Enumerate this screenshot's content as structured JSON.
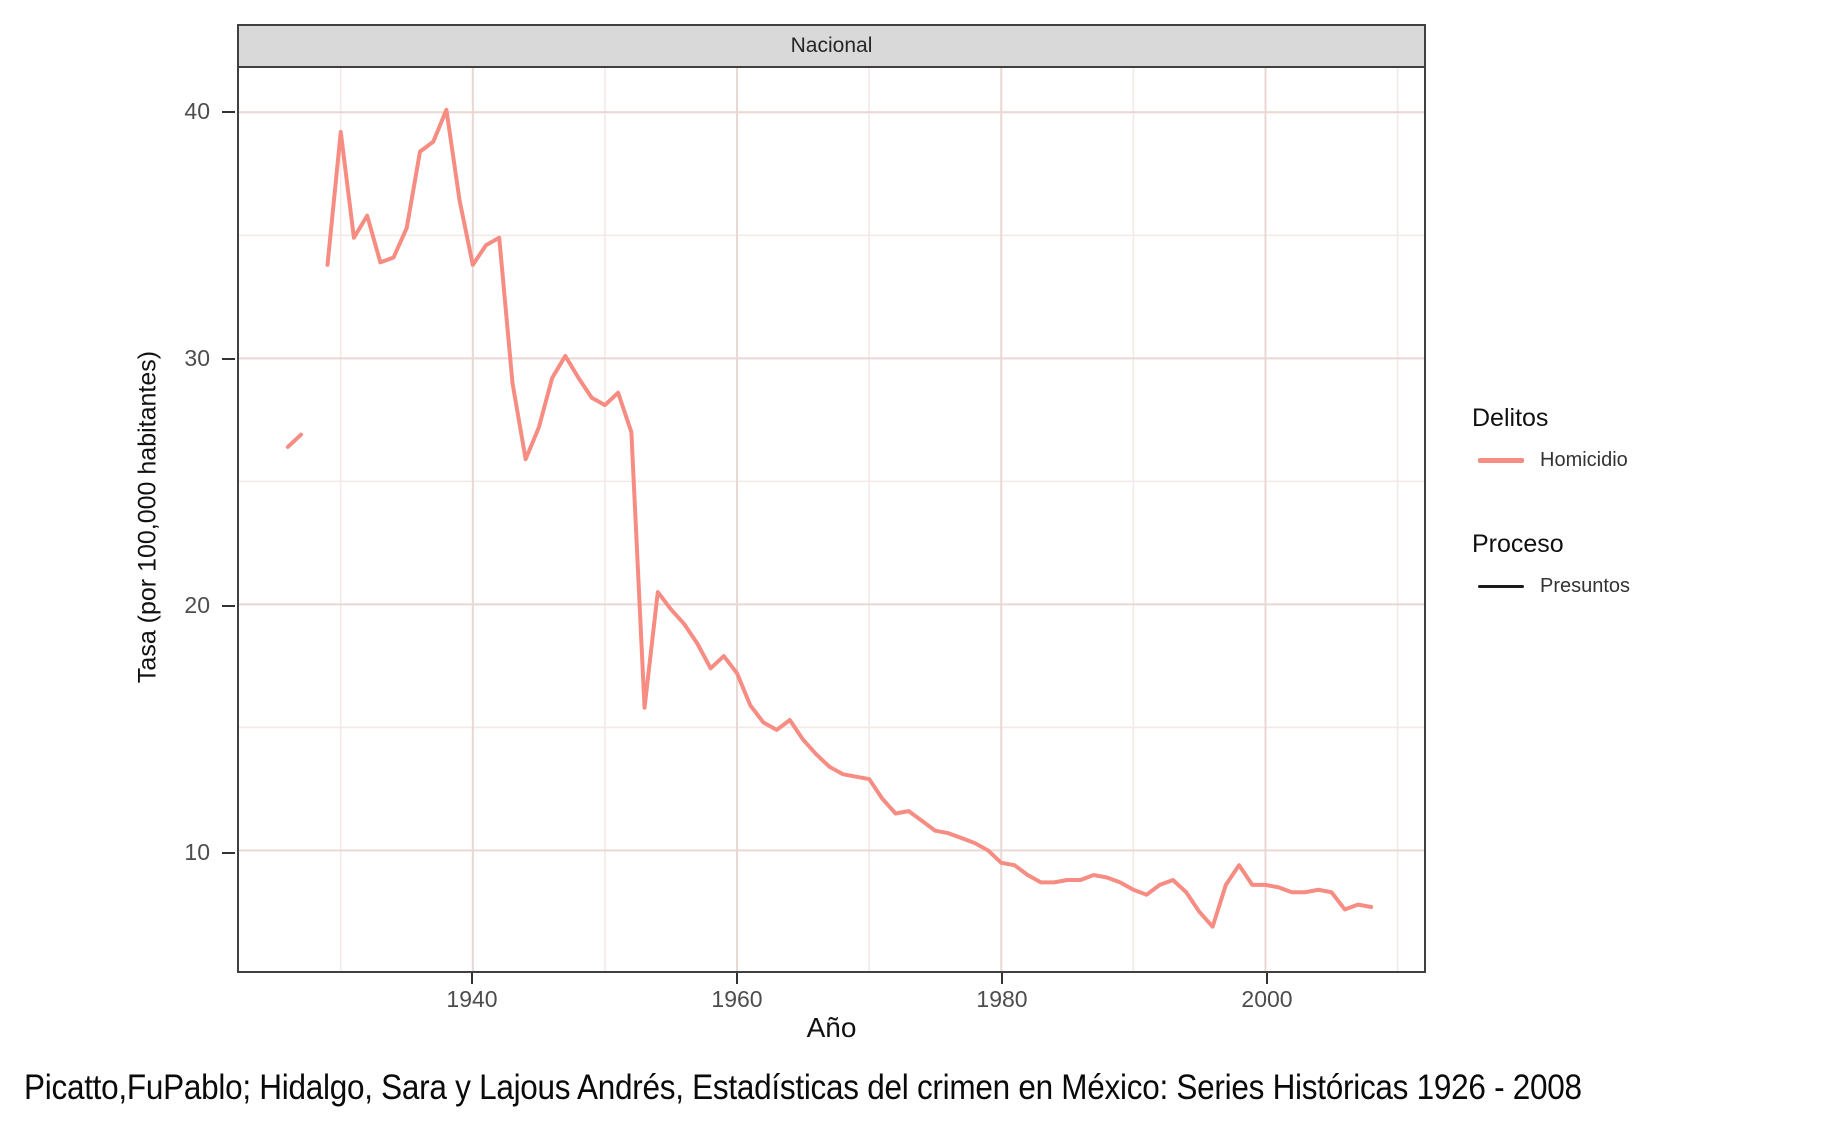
{
  "figure": {
    "strip_label": "Nacional",
    "y_axis_title": "Tasa (por 100,000 habitantes)",
    "x_axis_title": "Año",
    "y_ticks": [
      "40",
      "30",
      "20",
      "10"
    ],
    "x_ticks": [
      "1940",
      "1960",
      "1980",
      "2000"
    ],
    "caption": "Picatto,FuPablo; Hidalgo, Sara y Lajous Andrés, Estadísticas del crimen en México: Series Históricas 1926 - 2008"
  },
  "legend": {
    "delitos_title": "Delitos",
    "homicidio_label": "Homicidio",
    "proceso_title": "Proceso",
    "presuntos_label": "Presuntos"
  },
  "colors": {
    "homicidio_line": "#f68c82",
    "presuntos_key": "#1a1a1a",
    "strip_background": "#d9d9d9",
    "panel_border": "#404040",
    "grid_major": "#ead6d3",
    "grid_minor": "#f4e9e7",
    "tick_text": "#4d4d4d"
  },
  "chart_data": {
    "type": "line",
    "title": "Nacional",
    "xlabel": "Año",
    "ylabel": "Tasa (por 100,000 habitantes)",
    "xlim": [
      1922.3,
      2012.0
    ],
    "ylim": [
      5.1,
      41.8
    ],
    "x_major_ticks": [
      1940,
      1960,
      1980,
      2000
    ],
    "x_minor_gridlines": [
      1930,
      1950,
      1970,
      1990,
      2010
    ],
    "y_major_ticks": [
      10,
      20,
      30,
      40
    ],
    "y_minor_gridlines": [
      15,
      25,
      35
    ],
    "grid": true,
    "legend_position": "right",
    "series": [
      {
        "name": "Homicidio",
        "process": "Presuntos",
        "color": "#f68c82",
        "segments": [
          {
            "start_year": 1926,
            "values": [
              26.4,
              26.9
            ]
          },
          {
            "start_year": 1929,
            "values": [
              33.8,
              39.2,
              34.9,
              35.8,
              33.9,
              34.1,
              35.3,
              38.4,
              38.8,
              40.1,
              36.4,
              33.8,
              34.6,
              34.9,
              29.0,
              25.9,
              27.2,
              29.2,
              30.1,
              29.2,
              28.4,
              28.1,
              28.6,
              27.0,
              15.8,
              20.5,
              19.8,
              19.2,
              18.4,
              17.4,
              17.9,
              17.2,
              15.9,
              15.2,
              14.9,
              15.3,
              14.5,
              13.9,
              13.4,
              13.1,
              13.0,
              12.9,
              12.1,
              11.5,
              11.6,
              11.2,
              10.8,
              10.7,
              10.5,
              10.3,
              10.0,
              9.5,
              9.4,
              9.0,
              8.7,
              8.7,
              8.8,
              8.8,
              9.0,
              8.9,
              8.7,
              8.4,
              8.2,
              8.6,
              8.8,
              8.3,
              7.5,
              6.9,
              8.6,
              9.4,
              8.6,
              8.6,
              8.5,
              8.3,
              8.3,
              8.4,
              8.3,
              7.6,
              7.8,
              7.7
            ]
          }
        ]
      }
    ]
  }
}
